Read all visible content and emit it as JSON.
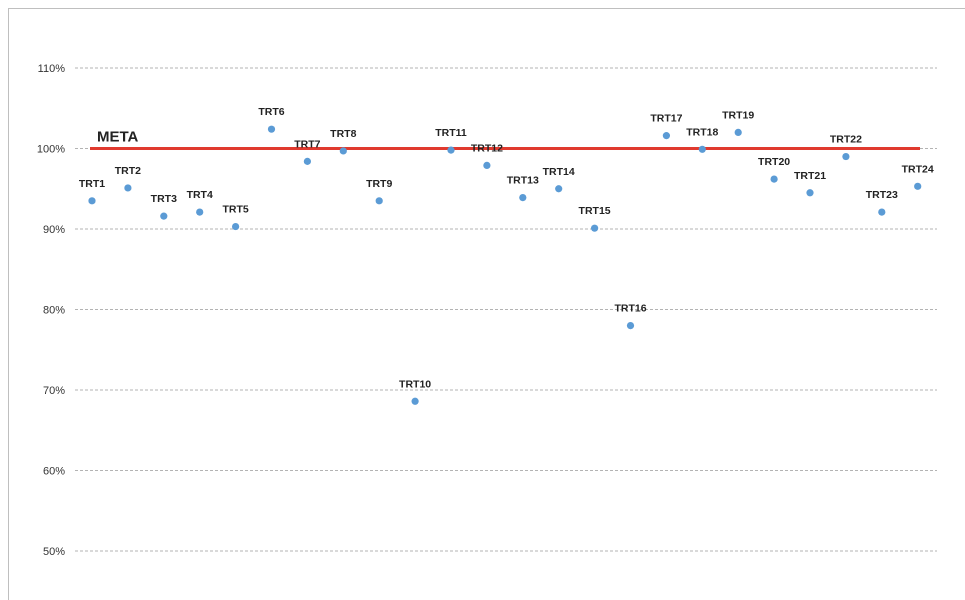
{
  "chart_data": {
    "type": "scatter",
    "title": "",
    "xlabel": "",
    "ylabel": "",
    "ylim": [
      50,
      110
    ],
    "y_ticks": [
      50,
      60,
      70,
      80,
      90,
      100,
      110
    ],
    "y_tick_labels": [
      "50%",
      "60%",
      "70%",
      "80%",
      "90%",
      "100%",
      "110%"
    ],
    "grid": true,
    "categories": [
      "TRT1",
      "TRT2",
      "TRT3",
      "TRT4",
      "TRT5",
      "TRT6",
      "TRT7",
      "TRT8",
      "TRT9",
      "TRT10",
      "TRT11",
      "TRT12",
      "TRT13",
      "TRT14",
      "TRT15",
      "TRT16",
      "TRT17",
      "TRT18",
      "TRT19",
      "TRT20",
      "TRT21",
      "TRT22",
      "TRT23",
      "TRT24"
    ],
    "values": [
      93.5,
      95.1,
      91.6,
      92.1,
      90.3,
      102.4,
      98.4,
      99.7,
      93.5,
      68.6,
      99.8,
      97.9,
      93.9,
      95.0,
      90.1,
      78.0,
      101.6,
      99.9,
      102.0,
      96.2,
      94.5,
      99.0,
      92.1,
      95.3
    ],
    "point_color": "#5b9bd5",
    "target": {
      "label": "META",
      "value": 100,
      "color": "#e03a2f"
    }
  }
}
